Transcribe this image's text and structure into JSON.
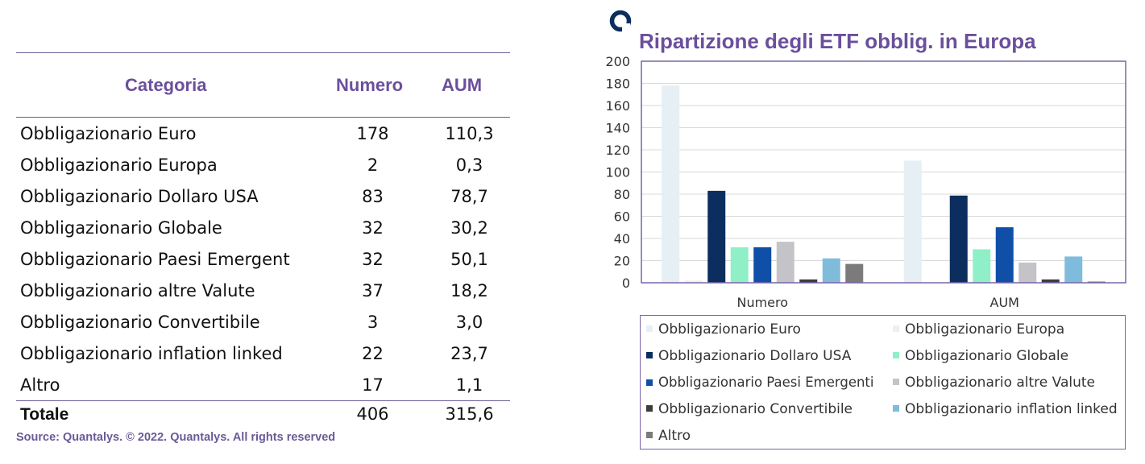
{
  "table": {
    "headers": {
      "categoria": "Categoria",
      "numero": "Numero",
      "aum": "AUM"
    },
    "rows": [
      {
        "categoria": "Obbligazionario Euro",
        "numero": "178",
        "aum": "110,3"
      },
      {
        "categoria": "Obbligazionario Europa",
        "numero": "2",
        "aum": "0,3"
      },
      {
        "categoria": "Obbligazionario Dollaro USA",
        "numero": "83",
        "aum": "78,7"
      },
      {
        "categoria": "Obbligazionario Globale",
        "numero": "32",
        "aum": "30,2"
      },
      {
        "categoria": "Obbligazionario Paesi Emergent",
        "numero": "32",
        "aum": "50,1"
      },
      {
        "categoria": "Obbligazionario altre Valute",
        "numero": "37",
        "aum": "18,2"
      },
      {
        "categoria": "Obbligazionario Convertibile",
        "numero": "3",
        "aum": "3,0"
      },
      {
        "categoria": "Obbligazionario inflation linked",
        "numero": "22",
        "aum": "23,7"
      },
      {
        "categoria": "Altro",
        "numero": "17",
        "aum": "1,1"
      }
    ],
    "total": {
      "categoria": "Totale",
      "numero": "406",
      "aum": "315,6"
    }
  },
  "source": "Source: Quantalys. © 2022. Quantalys. All rights reserved",
  "chart_data": {
    "type": "bar",
    "title": "Ripartizione degli ETF obblig. in Europa",
    "categories": [
      "Numero",
      "AUM"
    ],
    "ylim": [
      0,
      200
    ],
    "yticks": [
      0,
      20,
      40,
      60,
      80,
      100,
      120,
      140,
      160,
      180,
      200
    ],
    "grid": true,
    "legend_position": "bottom",
    "series": [
      {
        "name": "Obbligazionario Euro",
        "color": "#e6eff4",
        "values": [
          178,
          110.3
        ]
      },
      {
        "name": "Obbligazionario Europa",
        "color": "#efefef",
        "values": [
          2,
          0.3
        ]
      },
      {
        "name": "Obbligazionario Dollaro USA",
        "color": "#0b2e5e",
        "values": [
          83,
          78.7
        ]
      },
      {
        "name": "Obbligazionario Globale",
        "color": "#8ff0c8",
        "values": [
          32,
          30.2
        ]
      },
      {
        "name": "Obbligazionario Paesi Emergenti",
        "color": "#0f4fa8",
        "values": [
          32,
          50.1
        ]
      },
      {
        "name": "Obbligazionario altre Valute",
        "color": "#c4c4c8",
        "values": [
          37,
          18.2
        ]
      },
      {
        "name": "Obbligazionario Convertibile",
        "color": "#3c3c3c",
        "values": [
          3,
          3.0
        ]
      },
      {
        "name": "Obbligazionario inflation linked",
        "color": "#7fbcdc",
        "values": [
          22,
          23.7
        ]
      },
      {
        "name": "Altro",
        "color": "#7b7b7b",
        "values": [
          17,
          1.1
        ]
      }
    ]
  }
}
